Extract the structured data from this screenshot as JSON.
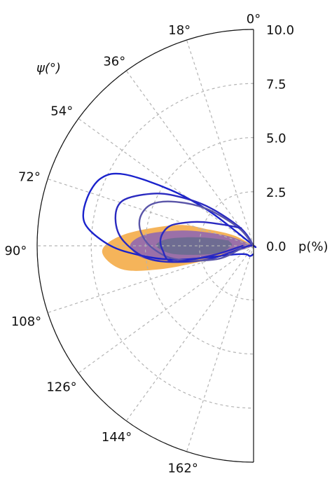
{
  "chart_data": {
    "type": "polar",
    "theta": {
      "label": "ψ(°)",
      "range": [
        0,
        180
      ],
      "ticks": [
        0,
        18,
        36,
        54,
        72,
        90,
        108,
        126,
        144,
        162
      ],
      "tick_labels": [
        "0°",
        "18°",
        "36°",
        "54°",
        "72°",
        "90°",
        "108°",
        "126°",
        "144°",
        "162°"
      ]
    },
    "radial": {
      "label": "p(%)",
      "range": [
        0,
        10
      ],
      "ticks": [
        0.0,
        2.5,
        5.0,
        7.5,
        10.0
      ],
      "tick_labels": [
        "0.0",
        "2.5",
        "5.0",
        "7.5",
        "10.0"
      ]
    },
    "grid": true,
    "filled_contours": [
      {
        "color": "#F5B45A",
        "points": [
          [
            0,
            0
          ],
          [
            62,
            1.0
          ],
          [
            70,
            2.2
          ],
          [
            75,
            3.7
          ],
          [
            85,
            6.0
          ],
          [
            92,
            7.0
          ],
          [
            100,
            6.2
          ],
          [
            104,
            4.5
          ],
          [
            107,
            2.4
          ],
          [
            108,
            1.0
          ],
          [
            180,
            0
          ]
        ]
      },
      {
        "color": "#9B70A8",
        "points": [
          [
            0,
            0
          ],
          [
            68,
            1.0
          ],
          [
            73,
            2.0
          ],
          [
            78,
            3.4
          ],
          [
            84,
            5.0
          ],
          [
            90,
            5.7
          ],
          [
            97,
            5.0
          ],
          [
            101,
            3.2
          ],
          [
            104,
            1.7
          ],
          [
            110,
            0.5
          ],
          [
            180,
            0
          ]
        ]
      },
      {
        "color": "#6E6C92",
        "points": [
          [
            78,
            1.2
          ],
          [
            80,
            2.1
          ],
          [
            83,
            3.2
          ],
          [
            86,
            4.1
          ],
          [
            90,
            4.5
          ],
          [
            95,
            3.9
          ],
          [
            98,
            3.0
          ],
          [
            101,
            2.0
          ],
          [
            100,
            1.4
          ],
          [
            93,
            1.1
          ],
          [
            86,
            1.0
          ],
          [
            78,
            1.2
          ]
        ]
      }
    ],
    "line_contours": [
      {
        "color": "#1A22CC",
        "closed": false,
        "points": [
          [
            6,
            0
          ],
          [
            44,
            0.1
          ],
          [
            52,
            2.6
          ],
          [
            56,
            4.6
          ],
          [
            61,
            6.8
          ],
          [
            66,
            7.7
          ],
          [
            74,
            8.0
          ],
          [
            82,
            7.9
          ],
          [
            88,
            7.0
          ],
          [
            93,
            5.8
          ],
          [
            100,
            3.7
          ],
          [
            119,
            0.8
          ],
          [
            160,
            0.5
          ],
          [
            175,
            0.4
          ]
        ]
      },
      {
        "color": "#2A2AC0",
        "closed": false,
        "points": [
          [
            5,
            0
          ],
          [
            36,
            1.0
          ],
          [
            49,
            2.7
          ],
          [
            57,
            4.2
          ],
          [
            63,
            5.3
          ],
          [
            71,
            6.4
          ],
          [
            79,
            6.5
          ],
          [
            88,
            6.0
          ],
          [
            98,
            4.7
          ],
          [
            106,
            2.4
          ],
          [
            95,
            0.3
          ],
          [
            88,
            0.1
          ]
        ]
      },
      {
        "color": "#5A55A8",
        "closed": false,
        "points": [
          [
            3,
            0
          ],
          [
            40,
            1.1
          ],
          [
            52,
            2.8
          ],
          [
            61,
            4.2
          ],
          [
            68,
            5.1
          ],
          [
            76,
            5.4
          ],
          [
            84,
            5.2
          ],
          [
            92,
            4.6
          ],
          [
            100,
            3.6
          ],
          [
            110,
            1.8
          ],
          [
            103,
            0.6
          ]
        ]
      },
      {
        "color": "#2A2AC0",
        "closed": false,
        "points": [
          [
            35,
            1.0
          ],
          [
            55,
            1.7
          ],
          [
            65,
            2.6
          ],
          [
            71,
            3.3
          ],
          [
            77,
            4.0
          ],
          [
            85,
            4.3
          ],
          [
            93,
            4.2
          ],
          [
            101,
            3.8
          ],
          [
            103,
            2.0
          ],
          [
            90,
            0.5
          ]
        ]
      }
    ]
  }
}
